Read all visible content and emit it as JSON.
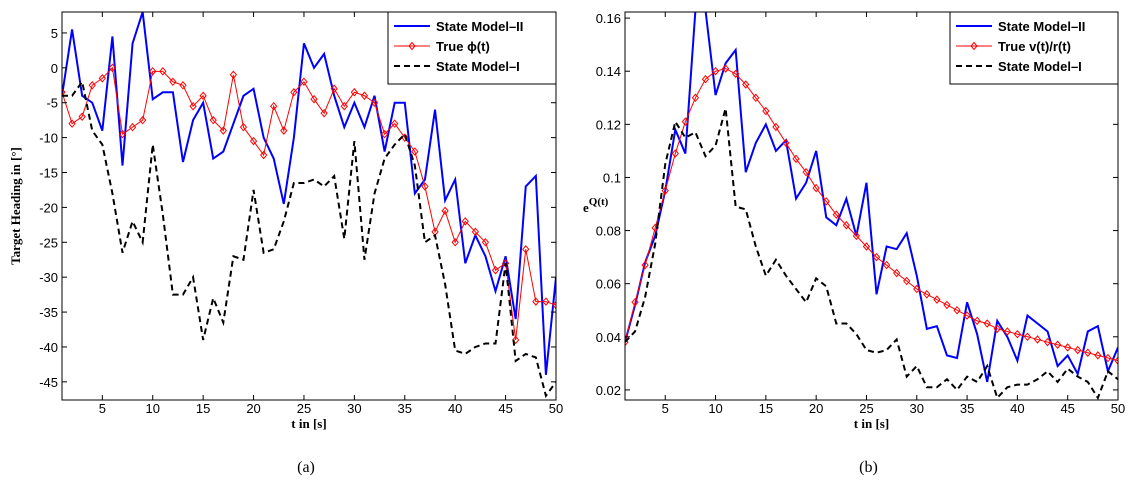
{
  "chart_data": [
    {
      "type": "line",
      "caption": "(a)",
      "xlabel": "t in [s]",
      "ylabel": "Target Heading in [°]",
      "x": [
        1,
        2,
        3,
        4,
        5,
        6,
        7,
        8,
        9,
        10,
        11,
        12,
        13,
        14,
        15,
        16,
        17,
        18,
        19,
        20,
        21,
        22,
        23,
        24,
        25,
        26,
        27,
        28,
        29,
        30,
        31,
        32,
        33,
        34,
        35,
        36,
        37,
        38,
        39,
        40,
        41,
        42,
        43,
        44,
        45,
        46,
        47,
        48,
        49,
        50
      ],
      "xlim": [
        1,
        50
      ],
      "xticks": [
        5,
        10,
        15,
        20,
        25,
        30,
        35,
        40,
        45,
        50
      ],
      "ylim": [
        -47.6,
        8
      ],
      "yticks": [
        -45,
        -40,
        -35,
        -30,
        -25,
        -20,
        -15,
        -10,
        -5,
        0,
        5
      ],
      "legend": "upper right",
      "series": [
        {
          "name": "State Model–II",
          "color": "#0000ff",
          "width": 2,
          "dash": false,
          "marker": null,
          "values": [
            -4,
            5.5,
            -4,
            -5,
            -9,
            4.5,
            -14,
            3.5,
            8,
            -4.5,
            -3.5,
            -3.5,
            -13.5,
            -7.5,
            -5,
            -13,
            -12,
            -8,
            -4,
            -3,
            -10,
            -13,
            -19.5,
            -10,
            3.5,
            0,
            2,
            -4,
            -8.5,
            -5,
            -8.5,
            -4,
            -12,
            -5,
            -5,
            -18,
            -16,
            -6,
            -19,
            -16,
            -28,
            -24,
            -27,
            -32,
            -27,
            -36,
            -17,
            -15.5,
            -44,
            -30
          ]
        },
        {
          "name": "True ϕ(t)",
          "color": "#ff0000",
          "width": 1,
          "dash": false,
          "marker": "diamond",
          "values": [
            -3.5,
            -8,
            -7,
            -2.5,
            -1.5,
            0,
            -9.5,
            -8.5,
            -7.5,
            -0.5,
            -0.5,
            -2,
            -2.5,
            -5.5,
            -4,
            -7.5,
            -9,
            -1,
            -8.5,
            -10.5,
            -12.5,
            -5.5,
            -9,
            -3.5,
            -2,
            -4.5,
            -6.5,
            -3,
            -5.5,
            -3.5,
            -4,
            -5,
            -9.5,
            -8,
            -10,
            -12,
            -17,
            -23.5,
            -20.5,
            -25,
            -22,
            -23.5,
            -25,
            -29,
            -28,
            -39,
            -26,
            -33.5,
            -33.5,
            -34
          ]
        },
        {
          "name": "State Model–I",
          "color": "#000000",
          "width": 2,
          "dash": true,
          "marker": null,
          "values": [
            -4,
            -4,
            -2,
            -9,
            -11,
            -18,
            -26.5,
            -22,
            -25,
            -11,
            -21,
            -32.5,
            -32.5,
            -30,
            -39,
            -33,
            -36.5,
            -27,
            -27.5,
            -17.5,
            -26.5,
            -26,
            -22,
            -16.5,
            -16.5,
            -16,
            -17,
            -15.5,
            -24.5,
            -10.5,
            -27.5,
            -18,
            -13,
            -11,
            -9.5,
            -14,
            -25,
            -24,
            -31,
            -40.5,
            -41,
            -40,
            -39.5,
            -39.5,
            -28,
            -42,
            -41,
            -41.5,
            -47,
            -45
          ]
        }
      ]
    },
    {
      "type": "line",
      "caption": "(b)",
      "xlabel": "t in [s]",
      "ylabel": "e",
      "ylabel_superscript": "Q(t)",
      "x": [
        1,
        2,
        3,
        4,
        5,
        6,
        7,
        8,
        9,
        10,
        11,
        12,
        13,
        14,
        15,
        16,
        17,
        18,
        19,
        20,
        21,
        22,
        23,
        24,
        25,
        26,
        27,
        28,
        29,
        30,
        31,
        32,
        33,
        34,
        35,
        36,
        37,
        38,
        39,
        40,
        41,
        42,
        43,
        44,
        45,
        46,
        47,
        48,
        49,
        50
      ],
      "xlim": [
        1,
        50
      ],
      "xticks": [
        5,
        10,
        15,
        20,
        25,
        30,
        35,
        40,
        45,
        50
      ],
      "ylim": [
        0.0162,
        0.1623
      ],
      "yticks": [
        0.02,
        0.04,
        0.06,
        0.08,
        0.1,
        0.12,
        0.14,
        0.16
      ],
      "legend": "upper right",
      "series": [
        {
          "name": "State Model–II",
          "color": "#0000ff",
          "width": 2,
          "dash": false,
          "marker": null,
          "values": [
            0.038,
            0.052,
            0.068,
            0.078,
            0.095,
            0.118,
            0.109,
            0.163,
            0.163,
            0.131,
            0.143,
            0.148,
            0.102,
            0.113,
            0.12,
            0.11,
            0.114,
            0.092,
            0.098,
            0.11,
            0.085,
            0.082,
            0.092,
            0.078,
            0.098,
            0.056,
            0.074,
            0.073,
            0.079,
            0.063,
            0.043,
            0.044,
            0.033,
            0.032,
            0.053,
            0.041,
            0.023,
            0.046,
            0.04,
            0.031,
            0.048,
            0.045,
            0.042,
            0.029,
            0.033,
            0.026,
            0.042,
            0.044,
            0.027,
            0.036
          ]
        },
        {
          "name": "True v(t)/r(t)",
          "color": "#ff0000",
          "width": 1,
          "dash": false,
          "marker": "diamond",
          "values": [
            0.038,
            0.053,
            0.067,
            0.081,
            0.095,
            0.109,
            0.121,
            0.13,
            0.137,
            0.14,
            0.141,
            0.139,
            0.135,
            0.13,
            0.125,
            0.119,
            0.113,
            0.107,
            0.102,
            0.096,
            0.091,
            0.086,
            0.082,
            0.078,
            0.074,
            0.07,
            0.067,
            0.064,
            0.061,
            0.058,
            0.056,
            0.054,
            0.052,
            0.05,
            0.048,
            0.046,
            0.045,
            0.043,
            0.042,
            0.041,
            0.04,
            0.039,
            0.038,
            0.037,
            0.036,
            0.035,
            0.034,
            0.033,
            0.032,
            0.031
          ]
        },
        {
          "name": "State Model–I",
          "color": "#000000",
          "width": 2,
          "dash": true,
          "marker": null,
          "values": [
            0.038,
            0.042,
            0.055,
            0.075,
            0.105,
            0.121,
            0.115,
            0.117,
            0.108,
            0.112,
            0.126,
            0.089,
            0.088,
            0.074,
            0.063,
            0.069,
            0.063,
            0.058,
            0.053,
            0.062,
            0.059,
            0.045,
            0.045,
            0.041,
            0.035,
            0.034,
            0.035,
            0.039,
            0.025,
            0.029,
            0.021,
            0.021,
            0.024,
            0.02,
            0.025,
            0.023,
            0.029,
            0.017,
            0.021,
            0.022,
            0.022,
            0.024,
            0.027,
            0.023,
            0.028,
            0.025,
            0.023,
            0.017,
            0.027,
            0.024
          ]
        }
      ]
    }
  ]
}
